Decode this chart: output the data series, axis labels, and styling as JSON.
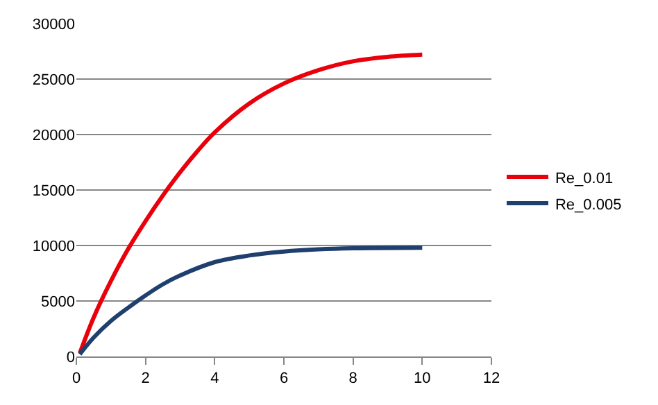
{
  "chart_data": {
    "type": "line",
    "series": [
      {
        "name": "Re_0.01",
        "color": "#e8000b",
        "x": [
          0.1,
          0.5,
          1,
          1.5,
          2,
          2.5,
          3,
          3.5,
          4,
          5,
          6,
          7,
          8,
          9,
          10
        ],
        "values": [
          300,
          3500,
          6800,
          9700,
          12200,
          14500,
          16600,
          18500,
          20200,
          22800,
          24600,
          25800,
          26600,
          27000,
          27200
        ]
      },
      {
        "name": "Re_0.005",
        "color": "#1f3f6e",
        "x": [
          0.1,
          0.5,
          1,
          1.5,
          2,
          2.5,
          3,
          4,
          5,
          6,
          7,
          8,
          10
        ],
        "values": [
          200,
          1700,
          3200,
          4400,
          5500,
          6500,
          7300,
          8500,
          9100,
          9450,
          9650,
          9750,
          9800
        ]
      }
    ],
    "xlim": [
      0,
      12
    ],
    "xticks": [
      0,
      2,
      4,
      6,
      8,
      10,
      12
    ],
    "ylim": [
      0,
      30000
    ],
    "yticks": [
      0,
      5000,
      10000,
      15000,
      20000,
      25000,
      30000
    ],
    "grid": "y",
    "legend": "right",
    "marker": "none",
    "line_style": "solid"
  }
}
